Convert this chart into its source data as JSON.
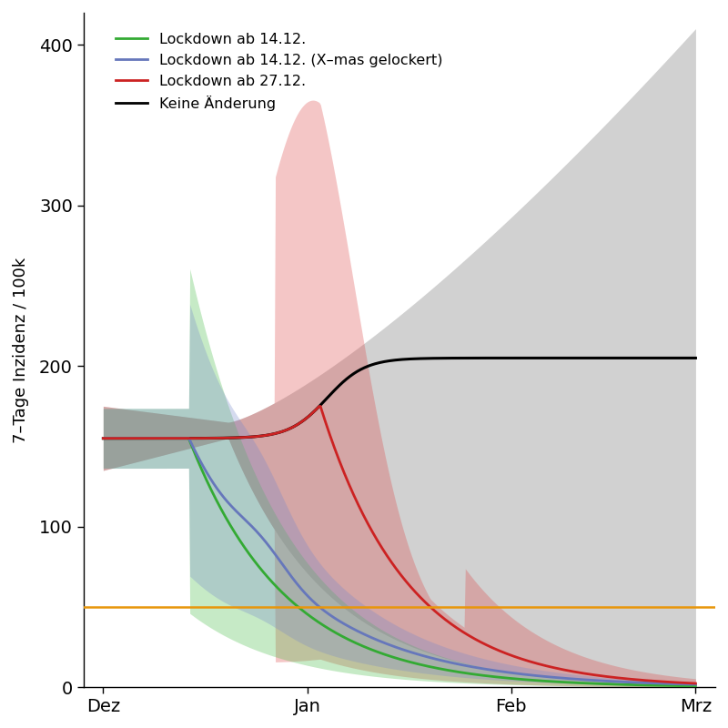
{
  "ylabel": "7–Tage Inzidenz / 100k",
  "ylim": [
    0,
    420
  ],
  "yticks": [
    0,
    100,
    200,
    300,
    400
  ],
  "xtick_labels": [
    "Dez",
    "Jan",
    "Feb",
    "Mrz"
  ],
  "xtick_positions": [
    0,
    31,
    62,
    90
  ],
  "orange_line_y": 50,
  "legend_entries": [
    {
      "label": "Lockdown ab 14.12.",
      "color": "#33aa33"
    },
    {
      "label": "Lockdown ab 14.12. (X–mas gelockert)",
      "color": "#6677bb"
    },
    {
      "label": "Lockdown ab 27.12.",
      "color": "#cc2222"
    },
    {
      "label": "Keine Änderung",
      "color": "#000000"
    }
  ],
  "background_color": "#ffffff",
  "black_line_color": "#000000",
  "green_line_color": "#33aa33",
  "blue_line_color": "#6677bb",
  "red_line_color": "#cc2222",
  "orange_line_color": "#e8960a",
  "gray_fill_color": "#999999",
  "green_fill_color": "#44bb44",
  "blue_fill_color": "#7788cc",
  "red_fill_color": "#dd4444"
}
